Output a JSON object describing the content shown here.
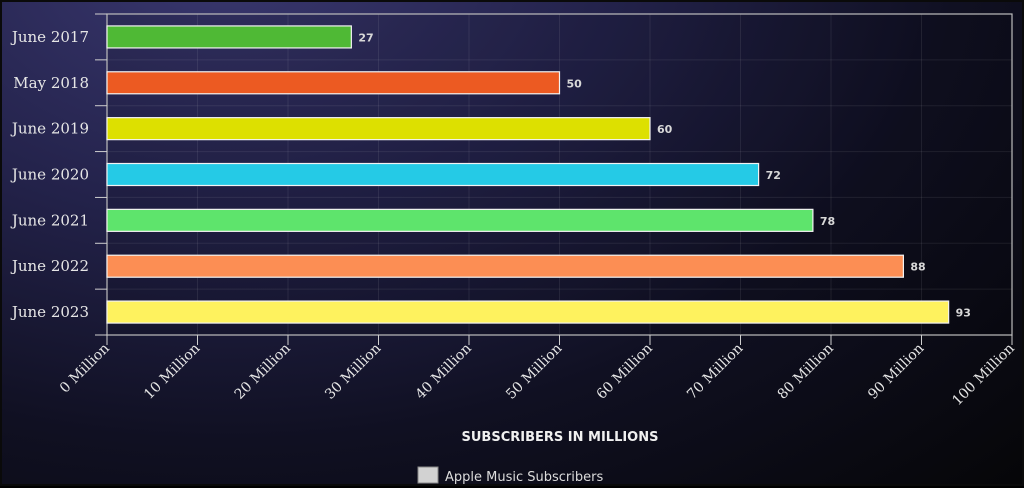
{
  "chart_data": {
    "type": "bar",
    "orientation": "horizontal",
    "categories": [
      "June 2017",
      "May 2018",
      "June 2019",
      "June 2020",
      "June 2021",
      "June 2022",
      "June 2023"
    ],
    "values": [
      27,
      50,
      60,
      72,
      78,
      88,
      93
    ],
    "value_labels": [
      "27",
      "50",
      "60",
      "72",
      "78",
      "88",
      "93"
    ],
    "bar_colors": [
      "#4fb935",
      "#ec5a22",
      "#dde000",
      "#25cae6",
      "#5ee46c",
      "#fc8e54",
      "#fef25e"
    ],
    "xlim": [
      0,
      100
    ],
    "x_ticks": [
      0,
      10,
      20,
      30,
      40,
      50,
      60,
      70,
      80,
      90,
      100
    ],
    "x_tick_labels": [
      "0 Million",
      "10 Million",
      "20 Million",
      "30 Million",
      "40 Million",
      "50 Million",
      "60 Million",
      "70 Million",
      "80 Million",
      "90 Million",
      "100 Million"
    ],
    "xlabel": "SUBSCRIBERS IN MILLIONS",
    "ylabel": "",
    "grid": true,
    "legend": {
      "position": "bottom-center",
      "entries": [
        {
          "label": "Apple Music Subscribers",
          "color": "#dcdcdc"
        }
      ]
    }
  }
}
